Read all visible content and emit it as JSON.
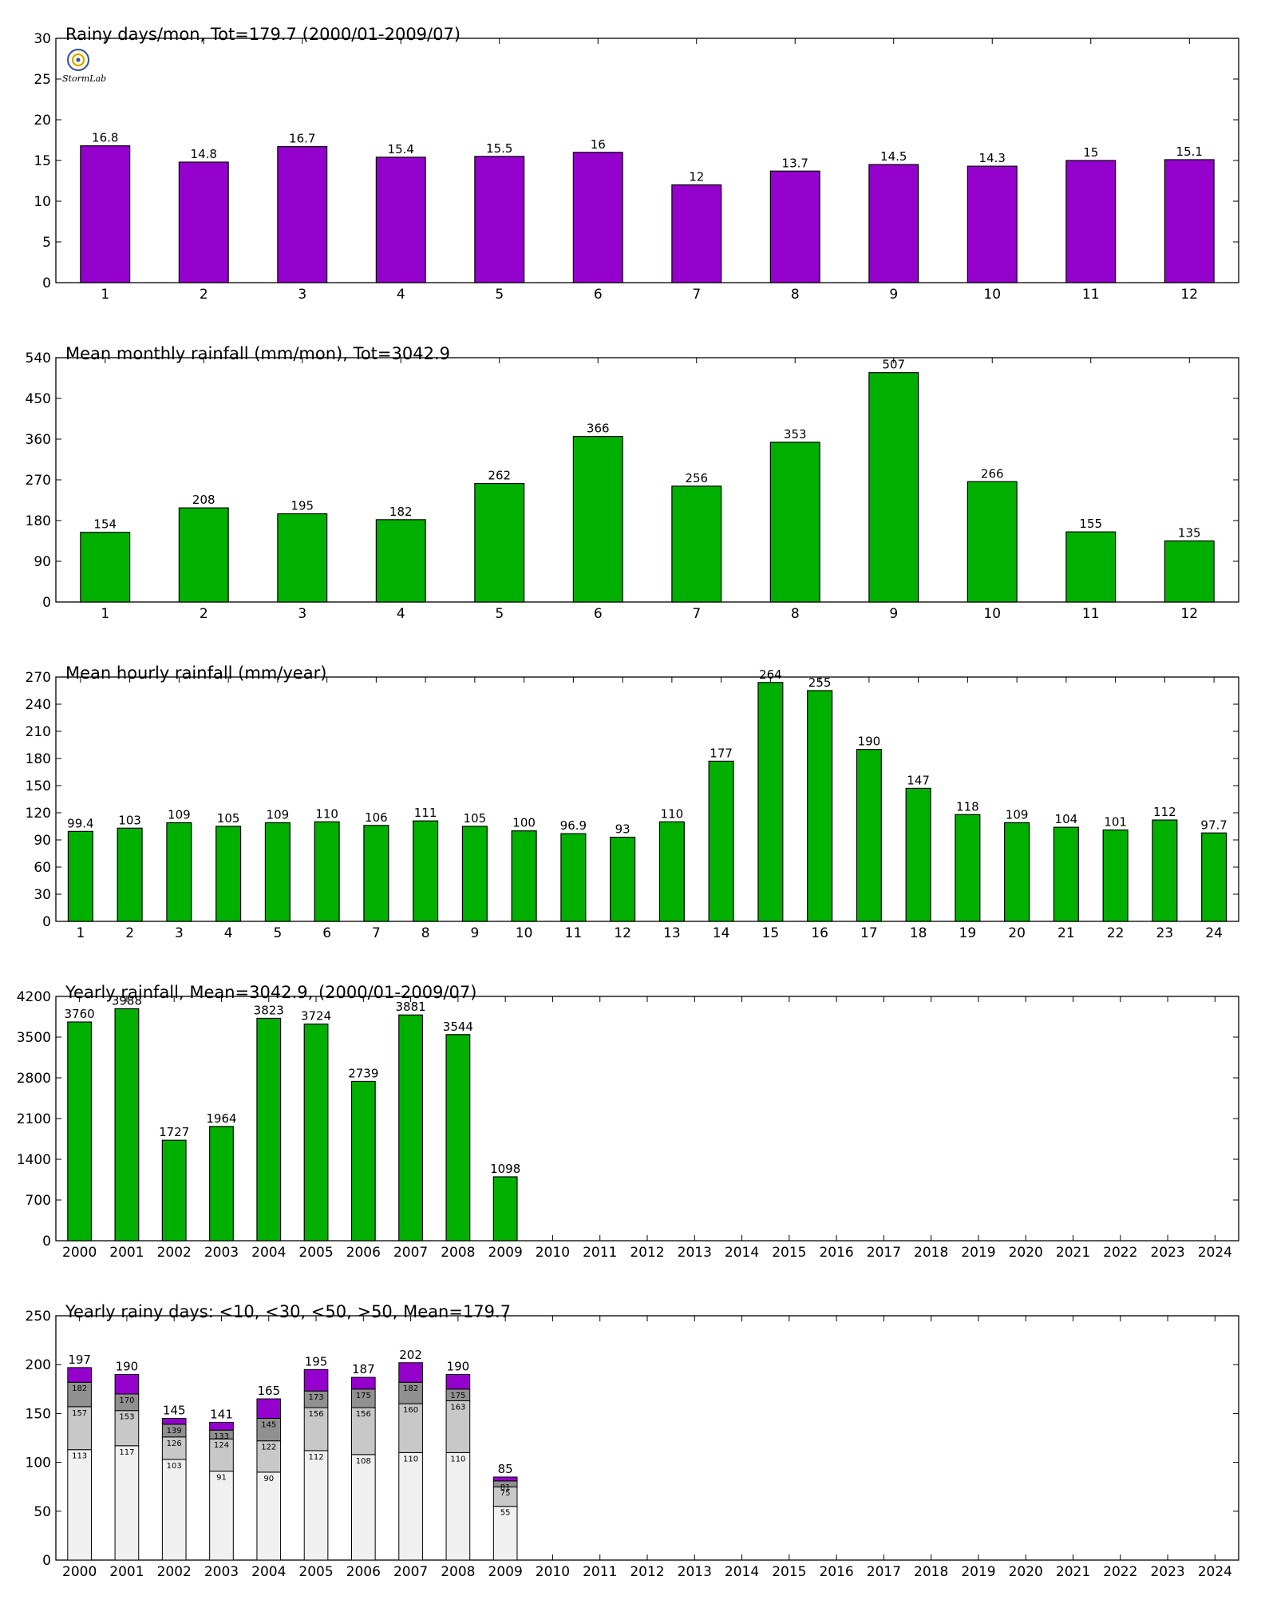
{
  "logo_text": "StormLab",
  "colors": {
    "purple": "#9400cc",
    "green": "#00b000",
    "axis": "#000000",
    "stack": [
      "#f0f0f0",
      "#c8c8c8",
      "#909090",
      "#9400cc"
    ]
  },
  "chart_data": [
    {
      "type": "bar",
      "title": "Rainy days/mon, Tot=179.7 (2000/01-2009/07)",
      "categories": [
        "1",
        "2",
        "3",
        "4",
        "5",
        "6",
        "7",
        "8",
        "9",
        "10",
        "11",
        "12"
      ],
      "values": [
        16.8,
        14.8,
        16.7,
        15.4,
        15.5,
        16,
        12,
        13.7,
        14.5,
        14.3,
        15,
        15.1
      ],
      "value_labels": [
        "16.8",
        "14.8",
        "16.7",
        "15.4",
        "15.5",
        "16",
        "12",
        "13.7",
        "14.5",
        "14.3",
        "15",
        "15.1"
      ],
      "ylim": [
        0,
        30
      ],
      "yticks": [
        "0",
        "5",
        "10",
        "15",
        "20",
        "25",
        "30"
      ],
      "color": "#9400cc"
    },
    {
      "type": "bar",
      "title": "Mean monthly rainfall (mm/mon), Tot=3042.9",
      "categories": [
        "1",
        "2",
        "3",
        "4",
        "5",
        "6",
        "7",
        "8",
        "9",
        "10",
        "11",
        "12"
      ],
      "values": [
        154,
        208,
        195,
        182,
        262,
        366,
        256,
        353,
        507,
        266,
        155,
        135
      ],
      "value_labels": [
        "154",
        "208",
        "195",
        "182",
        "262",
        "366",
        "256",
        "353",
        "507",
        "266",
        "155",
        "135"
      ],
      "ylim": [
        0,
        540
      ],
      "yticks": [
        "0",
        "90",
        "180",
        "270",
        "360",
        "450",
        "540"
      ],
      "color": "#00b000"
    },
    {
      "type": "bar",
      "title": "Mean hourly rainfall (mm/year)",
      "categories": [
        "1",
        "2",
        "3",
        "4",
        "5",
        "6",
        "7",
        "8",
        "9",
        "10",
        "11",
        "12",
        "13",
        "14",
        "15",
        "16",
        "17",
        "18",
        "19",
        "20",
        "21",
        "22",
        "23",
        "24"
      ],
      "values": [
        99.4,
        103,
        109,
        105,
        109,
        110,
        106,
        111,
        105,
        100,
        96.9,
        93,
        110,
        177,
        264,
        255,
        190,
        147,
        118,
        109,
        104,
        101,
        112,
        97.7
      ],
      "value_labels": [
        "99.4",
        "103",
        "109",
        "105",
        "109",
        "110",
        "106",
        "111",
        "105",
        "100",
        "96.9",
        "93",
        "110",
        "177",
        "264",
        "255",
        "190",
        "147",
        "118",
        "109",
        "104",
        "101",
        "112",
        "97.7"
      ],
      "ylim": [
        0,
        270
      ],
      "yticks": [
        "0",
        "30",
        "60",
        "90",
        "120",
        "150",
        "180",
        "210",
        "240",
        "270"
      ],
      "color": "#00b000"
    },
    {
      "type": "bar",
      "title": "Yearly rainfall, Mean=3042.9, (2000/01-2009/07)",
      "categories": [
        "2000",
        "2001",
        "2002",
        "2003",
        "2004",
        "2005",
        "2006",
        "2007",
        "2008",
        "2009",
        "2010",
        "2011",
        "2012",
        "2013",
        "2014",
        "2015",
        "2016",
        "2017",
        "2018",
        "2019",
        "2020",
        "2021",
        "2022",
        "2023",
        "2024"
      ],
      "values": [
        3760,
        3988,
        1727,
        1964,
        3823,
        3724,
        2739,
        3881,
        3544,
        1098,
        null,
        null,
        null,
        null,
        null,
        null,
        null,
        null,
        null,
        null,
        null,
        null,
        null,
        null,
        null
      ],
      "value_labels": [
        "3760",
        "3988",
        "1727",
        "1964",
        "3823",
        "3724",
        "2739",
        "3881",
        "3544",
        "1098",
        "",
        "",
        "",
        "",
        "",
        "",
        "",
        "",
        "",
        "",
        "",
        "",
        "",
        "",
        ""
      ],
      "ylim": [
        0,
        4200
      ],
      "yticks": [
        "0",
        "700",
        "1400",
        "2100",
        "2800",
        "3500",
        "4200"
      ],
      "color": "#00b000"
    },
    {
      "type": "bar",
      "stacked": true,
      "title": "Yearly rainy days: <10, <30, <50, >50, Mean=179.7",
      "categories": [
        "2000",
        "2001",
        "2002",
        "2003",
        "2004",
        "2005",
        "2006",
        "2007",
        "2008",
        "2009",
        "2010",
        "2011",
        "2012",
        "2013",
        "2014",
        "2015",
        "2016",
        "2017",
        "2018",
        "2019",
        "2020",
        "2021",
        "2022",
        "2023",
        "2024"
      ],
      "cumulative": [
        [
          113,
          157,
          182,
          197
        ],
        [
          117,
          153,
          170,
          190
        ],
        [
          103,
          126,
          139,
          145
        ],
        [
          91,
          124,
          133,
          141
        ],
        [
          90,
          122,
          145,
          165
        ],
        [
          112,
          156,
          173,
          195
        ],
        [
          108,
          156,
          175,
          187
        ],
        [
          110,
          160,
          182,
          202
        ],
        [
          110,
          163,
          175,
          190
        ],
        [
          55,
          75,
          81,
          85
        ],
        null,
        null,
        null,
        null,
        null,
        null,
        null,
        null,
        null,
        null,
        null,
        null,
        null,
        null,
        null
      ],
      "segment_labels": [
        [
          "113",
          "157",
          "182"
        ],
        [
          "117",
          "153",
          "170"
        ],
        [
          "103",
          "126",
          "139"
        ],
        [
          "91",
          "124",
          "133"
        ],
        [
          "90",
          "122",
          "145"
        ],
        [
          "112",
          "156",
          "173"
        ],
        [
          "108",
          "156",
          "175"
        ],
        [
          "110",
          "160",
          "182"
        ],
        [
          "110",
          "163",
          "175"
        ],
        [
          "55",
          "75",
          "81"
        ],
        null,
        null,
        null,
        null,
        null,
        null,
        null,
        null,
        null,
        null,
        null,
        null,
        null,
        null,
        null
      ],
      "total_labels": [
        "197",
        "190",
        "145",
        "141",
        "165",
        "195",
        "187",
        "202",
        "190",
        "85",
        "",
        "",
        "",
        "",
        "",
        "",
        "",
        "",
        "",
        "",
        "",
        "",
        "",
        "",
        ""
      ],
      "ylim": [
        0,
        250
      ],
      "yticks": [
        "0",
        "50",
        "100",
        "150",
        "200",
        "250"
      ]
    }
  ]
}
